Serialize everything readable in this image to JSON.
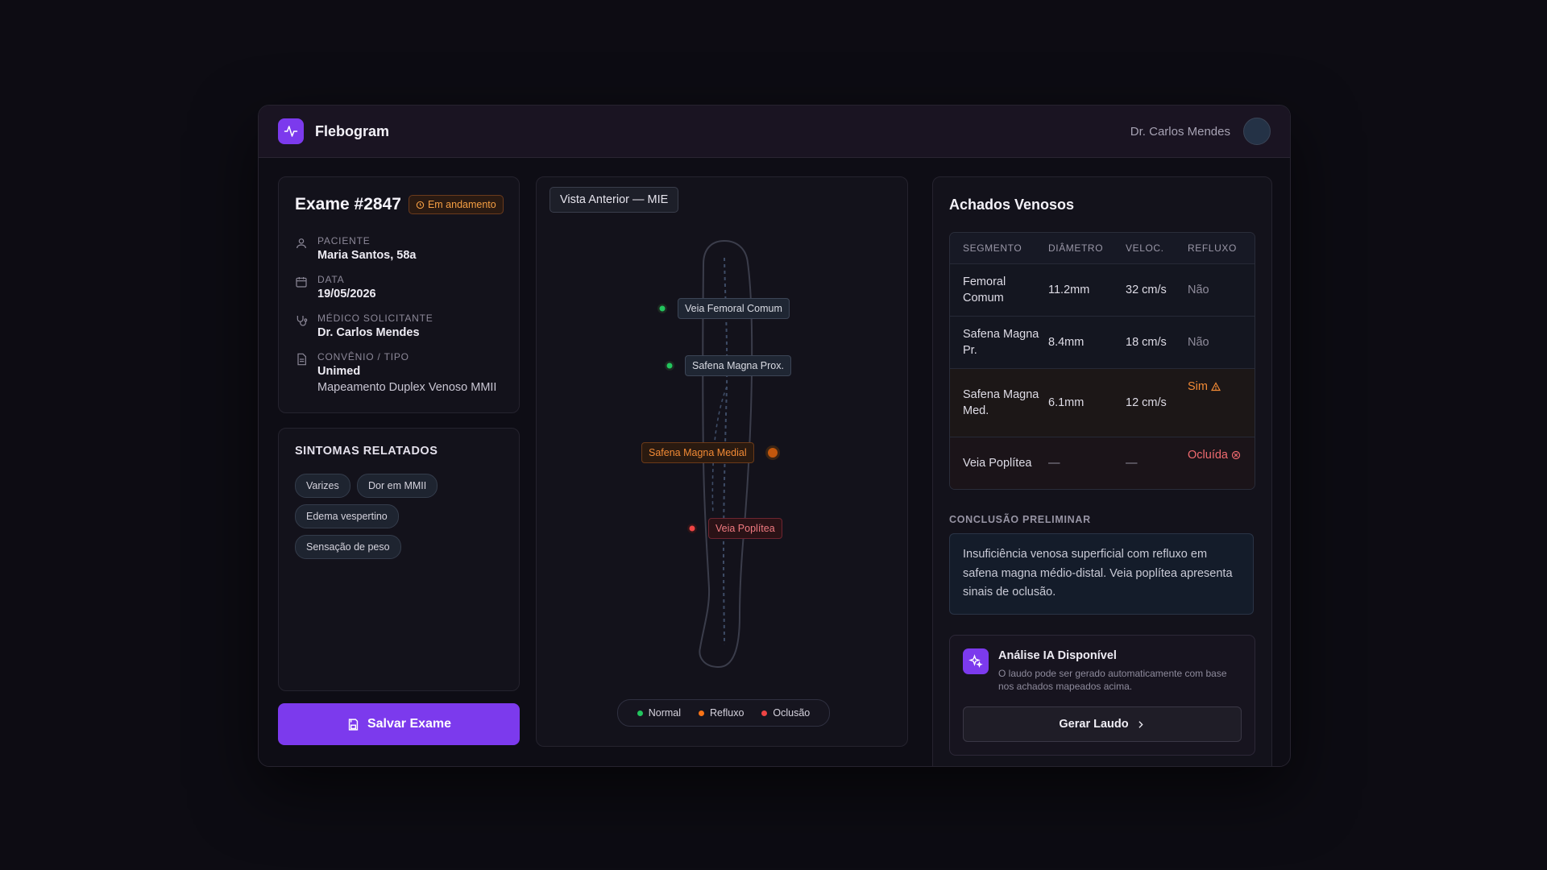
{
  "app": {
    "name": "Flebogram",
    "user": "Dr. Carlos Mendes"
  },
  "exam": {
    "title": "Exame #2847",
    "status": "Em andamento",
    "patient_label": "PACIENTE",
    "patient": "Maria Santos, 58a",
    "date_label": "DATA",
    "date": "19/05/2026",
    "doctor_label": "MÉDICO SOLICITANTE",
    "doctor": "Dr. Carlos Mendes",
    "plan_label": "CONVÊNIO / TIPO",
    "plan": "Unimed",
    "exam_type": "Mapeamento Duplex Venoso MMII"
  },
  "symptoms": {
    "title": "SINTOMAS RELATADOS",
    "tags": [
      "Varizes",
      "Dor em MMII",
      "Edema vespertino",
      "Sensação de peso"
    ]
  },
  "save_button": "Salvar Exame",
  "diagram": {
    "view": "Vista Anterior — MIE",
    "markers": [
      {
        "label": "Veia Femoral Comum",
        "status": "normal"
      },
      {
        "label": "Safena Magna Prox.",
        "status": "normal"
      },
      {
        "label": "Safena Magna Medial",
        "status": "reflux"
      },
      {
        "label": "Veia Poplítea",
        "status": "occlusion"
      }
    ],
    "legend": {
      "normal": "Normal",
      "reflux": "Refluxo",
      "occlusion": "Oclusão"
    },
    "colors": {
      "normal": "#22c55e",
      "reflux": "#f97316",
      "occlusion": "#ef4444"
    }
  },
  "findings": {
    "title": "Achados Venosos",
    "headers": [
      "SEGMENTO",
      "DIÂMETRO",
      "VELOC.",
      "REFLUXO"
    ],
    "rows": [
      {
        "segment": "Femoral Comum",
        "diameter": "11.2mm",
        "velocity": "32 cm/s",
        "reflux": "Não"
      },
      {
        "segment": "Safena Magna Pr.",
        "diameter": "8.4mm",
        "velocity": "18 cm/s",
        "reflux": "Não"
      },
      {
        "segment": "Safena Magna Med.",
        "diameter": "6.1mm",
        "velocity": "12 cm/s",
        "reflux": "Sim"
      },
      {
        "segment": "Veia Poplítea",
        "diameter": "—",
        "velocity": "—",
        "reflux": "Ocluída"
      }
    ],
    "conclusion_title": "CONCLUSÃO PRELIMINAR",
    "conclusion": "Insuficiência venosa superficial com refluxo em safena magna médio-distal. Veia poplítea apresenta sinais de oclusão."
  },
  "ai": {
    "title": "Análise IA Disponível",
    "description": "O laudo pode ser gerado automaticamente com base nos achados mapeados acima.",
    "button": "Gerar Laudo"
  }
}
